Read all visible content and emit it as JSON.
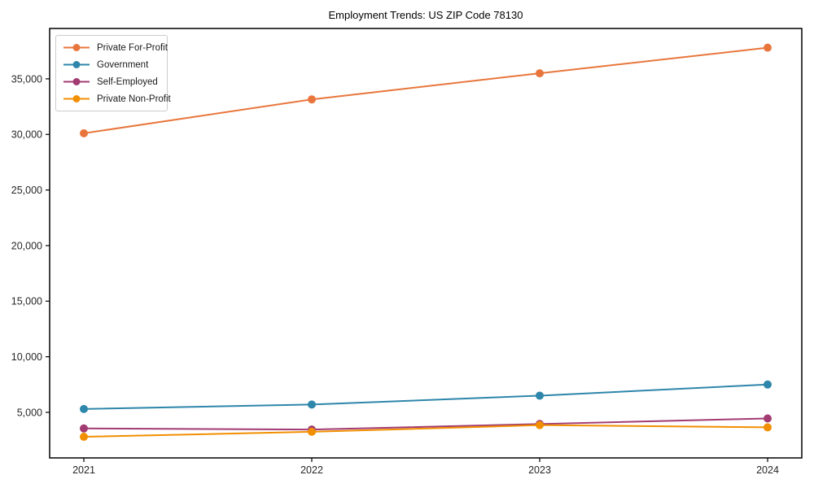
{
  "chart_data": {
    "type": "line",
    "title": "Employment Trends: US ZIP Code 78130",
    "xlabel": "",
    "ylabel": "",
    "x_labels": [
      "2021",
      "2022",
      "2023",
      "2024"
    ],
    "y_ticks": [
      5000,
      10000,
      15000,
      20000,
      25000,
      30000,
      35000
    ],
    "y_tick_labels": [
      "5,000",
      "10,000",
      "15,000",
      "20,000",
      "25,000",
      "30,000",
      "35,000"
    ],
    "ylim": [
      900,
      39530
    ],
    "grid": false,
    "legend_position": "upper-left",
    "series": [
      {
        "name": "Private For-Profit",
        "color": "#E8763C",
        "values": [
          30100,
          33150,
          35500,
          37800
        ]
      },
      {
        "name": "Government",
        "color": "#2E86AB",
        "values": [
          5300,
          5700,
          6500,
          7500
        ]
      },
      {
        "name": "Self-Employed",
        "color": "#A23B72",
        "values": [
          3550,
          3450,
          3950,
          4450
        ]
      },
      {
        "name": "Private Non-Profit",
        "color": "#F18F01",
        "values": [
          2800,
          3250,
          3850,
          3650
        ]
      }
    ]
  }
}
